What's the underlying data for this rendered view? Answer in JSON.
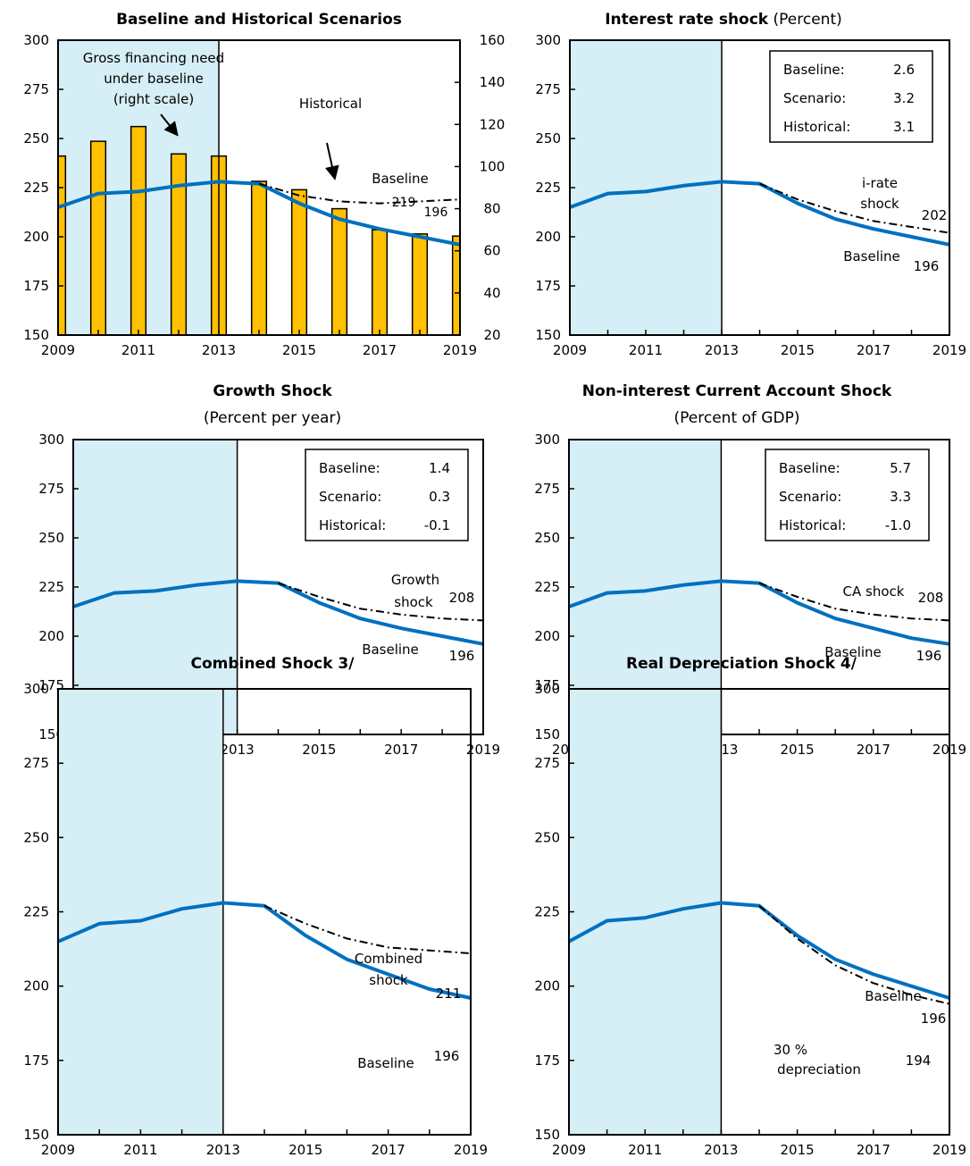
{
  "chart_data": [
    {
      "id": "p1",
      "type": "bar+line",
      "title_bold": "Baseline and Historical Scenarios",
      "title_normal": "",
      "subtitle": "",
      "x": [
        2009,
        2010,
        2011,
        2012,
        2013,
        2014,
        2015,
        2016,
        2017,
        2018,
        2019
      ],
      "xticks": [
        "2009",
        "2011",
        "2013",
        "2015",
        "2017",
        "2019"
      ],
      "yticks_left": [
        "300",
        "275",
        "250",
        "225",
        "200",
        "175",
        "150"
      ],
      "yticks_right": [
        "160",
        "140",
        "120",
        "100",
        "80",
        "60",
        "40",
        "20"
      ],
      "ylim_left": [
        150,
        300
      ],
      "ylim_right": [
        20,
        160
      ],
      "shaded_until": 2013,
      "bars": {
        "name": "Gross financing need under baseline (right scale)",
        "values": [
          105,
          112,
          119,
          106,
          105,
          93,
          89,
          80,
          70,
          68,
          67
        ],
        "color": "#FFC000"
      },
      "series": [
        {
          "name": "Baseline",
          "style": "solid",
          "color": "#0070C0",
          "values": [
            215,
            222,
            223,
            226,
            228,
            227,
            217,
            209,
            204,
            200,
            196
          ]
        },
        {
          "name": "Historical",
          "style": "dashdot",
          "color": "#000000",
          "values": [
            null,
            null,
            null,
            null,
            null,
            227,
            221,
            218,
            217,
            218,
            219
          ]
        }
      ],
      "annotations": [
        {
          "text": "Gross financing need"
        },
        {
          "text": "under baseline"
        },
        {
          "text": "(right scale)"
        },
        {
          "text": "Historical"
        },
        {
          "text": "Baseline"
        },
        {
          "text": "219"
        },
        {
          "text": "196"
        }
      ]
    },
    {
      "id": "p2",
      "type": "line",
      "title_bold": "Interest rate shock",
      "title_normal": " (Percent)",
      "subtitle": "",
      "x": [
        2009,
        2010,
        2011,
        2012,
        2013,
        2014,
        2015,
        2016,
        2017,
        2018,
        2019
      ],
      "xticks": [
        "2009",
        "2011",
        "2013",
        "2015",
        "2017",
        "2019"
      ],
      "yticks_left": [
        "300",
        "275",
        "250",
        "225",
        "200",
        "175",
        "150"
      ],
      "ylim_left": [
        150,
        300
      ],
      "shaded_until": 2013,
      "legend_box": [
        {
          "label": "Baseline:",
          "value": "2.6"
        },
        {
          "label": "Scenario:",
          "value": "3.2"
        },
        {
          "label": "Historical:",
          "value": "3.1"
        }
      ],
      "series": [
        {
          "name": "Baseline",
          "style": "solid",
          "color": "#0070C0",
          "values": [
            215,
            222,
            223,
            226,
            228,
            227,
            217,
            209,
            204,
            200,
            196
          ]
        },
        {
          "name": "i-rate shock",
          "style": "dashdot",
          "color": "#000000",
          "values": [
            null,
            null,
            null,
            null,
            null,
            227,
            219,
            213,
            208,
            205,
            202
          ]
        }
      ],
      "annotations": [
        {
          "text": "i-rate"
        },
        {
          "text": "shock"
        },
        {
          "text": "202"
        },
        {
          "text": "Baseline"
        },
        {
          "text": "196"
        }
      ]
    },
    {
      "id": "p3",
      "type": "line",
      "title_bold": "Growth Shock",
      "title_normal": "",
      "subtitle": "(Percent per year)",
      "x": [
        2009,
        2010,
        2011,
        2012,
        2013,
        2014,
        2015,
        2016,
        2017,
        2018,
        2019
      ],
      "xticks": [
        "2009",
        "2011",
        "2013",
        "2015",
        "2017",
        "2019"
      ],
      "yticks_left": [
        "300",
        "275",
        "250",
        "225",
        "200",
        "175",
        "150"
      ],
      "ylim_left": [
        150,
        300
      ],
      "shaded_until": 2013,
      "legend_box": [
        {
          "label": "Baseline:",
          "value": "1.4"
        },
        {
          "label": "Scenario:",
          "value": "0.3"
        },
        {
          "label": "Historical:",
          "value": "-0.1"
        }
      ],
      "series": [
        {
          "name": "Baseline",
          "style": "solid",
          "color": "#0070C0",
          "values": [
            215,
            222,
            223,
            226,
            228,
            227,
            217,
            209,
            204,
            200,
            196
          ]
        },
        {
          "name": "Growth shock",
          "style": "dashdot",
          "color": "#000000",
          "values": [
            null,
            null,
            null,
            null,
            null,
            227,
            220,
            214,
            211,
            209,
            208
          ]
        }
      ],
      "annotations": [
        {
          "text": "Growth"
        },
        {
          "text": "shock"
        },
        {
          "text": "208"
        },
        {
          "text": "Baseline"
        },
        {
          "text": "196"
        }
      ]
    },
    {
      "id": "p4",
      "type": "line",
      "title_bold": "Non-interest Current Account Shock",
      "title_normal": "",
      "subtitle": "(Percent of GDP)",
      "x": [
        2009,
        2010,
        2011,
        2012,
        2013,
        2014,
        2015,
        2016,
        2017,
        2018,
        2019
      ],
      "xticks": [
        "2009",
        "2011",
        "2013",
        "2015",
        "2017",
        "2019"
      ],
      "yticks_left": [
        "300",
        "275",
        "250",
        "225",
        "200",
        "175",
        "150"
      ],
      "ylim_left": [
        150,
        300
      ],
      "shaded_until": 2013,
      "legend_box": [
        {
          "label": "Baseline:",
          "value": "5.7"
        },
        {
          "label": "Scenario:",
          "value": "3.3"
        },
        {
          "label": "Historical:",
          "value": "-1.0"
        }
      ],
      "series": [
        {
          "name": "Baseline",
          "style": "solid",
          "color": "#0070C0",
          "values": [
            215,
            222,
            223,
            226,
            228,
            227,
            217,
            209,
            204,
            199,
            196
          ]
        },
        {
          "name": "CA shock",
          "style": "dashdot",
          "color": "#000000",
          "values": [
            null,
            null,
            null,
            null,
            null,
            227,
            220,
            214,
            211,
            209,
            208
          ]
        }
      ],
      "annotations": [
        {
          "text": "CA shock"
        },
        {
          "text": "208"
        },
        {
          "text": "Baseline"
        },
        {
          "text": "196"
        }
      ]
    },
    {
      "id": "p5",
      "type": "line",
      "title_bold": "Combined Shock  3/",
      "title_normal": "",
      "subtitle": "",
      "x": [
        2009,
        2010,
        2011,
        2012,
        2013,
        2014,
        2015,
        2016,
        2017,
        2018,
        2019
      ],
      "xticks": [
        "2009",
        "2011",
        "2013",
        "2015",
        "2017",
        "2019"
      ],
      "yticks_left": [
        "300",
        "275",
        "250",
        "225",
        "200",
        "175",
        "150"
      ],
      "ylim_left": [
        150,
        300
      ],
      "shaded_until": 2013,
      "series": [
        {
          "name": "Baseline",
          "style": "solid",
          "color": "#0070C0",
          "values": [
            215,
            221,
            222,
            226,
            228,
            227,
            217,
            209,
            204,
            199,
            196
          ]
        },
        {
          "name": "Combined shock",
          "style": "dashdot",
          "color": "#000000",
          "values": [
            null,
            null,
            null,
            null,
            null,
            227,
            221,
            216,
            213,
            212,
            211
          ]
        }
      ],
      "annotations": [
        {
          "text": "Combined"
        },
        {
          "text": "shock"
        },
        {
          "text": "211"
        },
        {
          "text": "Baseline"
        },
        {
          "text": "196"
        }
      ]
    },
    {
      "id": "p6",
      "type": "line",
      "title_bold": "Real Depreciation Shock  4/",
      "title_normal": "",
      "subtitle": "",
      "x": [
        2009,
        2010,
        2011,
        2012,
        2013,
        2014,
        2015,
        2016,
        2017,
        2018,
        2019
      ],
      "xticks": [
        "2009",
        "2011",
        "2013",
        "2015",
        "2017",
        "2019"
      ],
      "yticks_left": [
        "300",
        "275",
        "250",
        "225",
        "200",
        "175",
        "150"
      ],
      "ylim_left": [
        150,
        300
      ],
      "shaded_until": 2013,
      "series": [
        {
          "name": "Baseline",
          "style": "solid",
          "color": "#0070C0",
          "values": [
            215,
            222,
            223,
            226,
            228,
            227,
            217,
            209,
            204,
            200,
            196
          ]
        },
        {
          "name": "30 % depreciation",
          "style": "dashdot",
          "color": "#000000",
          "values": [
            null,
            null,
            null,
            null,
            null,
            227,
            216,
            207,
            201,
            197,
            194
          ]
        }
      ],
      "annotations": [
        {
          "text": "Baseline"
        },
        {
          "text": "196"
        },
        {
          "text": "30 %"
        },
        {
          "text": "depreciation"
        },
        {
          "text": "194"
        }
      ]
    }
  ],
  "colors": {
    "shade": "#D6EEF6",
    "baseline": "#0070C0",
    "bar": "#FFC000",
    "shock": "#000000"
  }
}
